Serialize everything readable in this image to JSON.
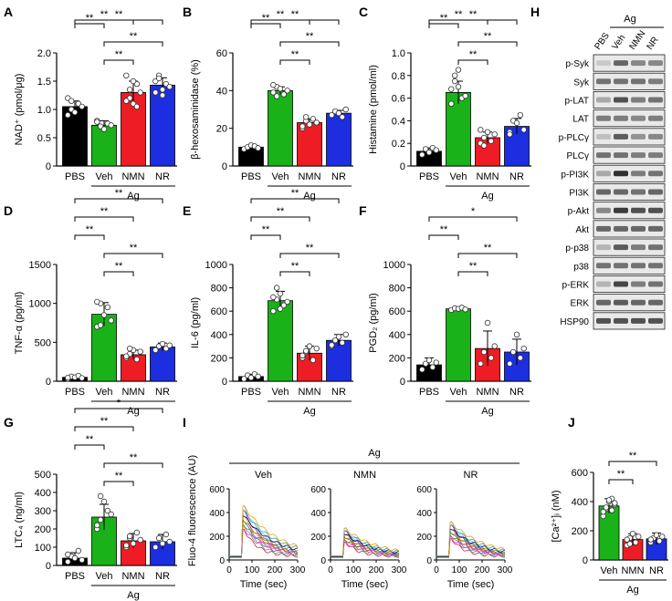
{
  "colors": {
    "PBS": "#000000",
    "Veh": "#19b219",
    "NMN": "#ee1c24",
    "NR": "#1c2ee0",
    "axis": "#000000"
  },
  "chart_data": [
    {
      "panel": "A",
      "type": "bar",
      "ylabel": "NAD⁺ (pmol/μg)",
      "ylim": [
        0,
        2
      ],
      "yticks": [
        0,
        0.5,
        1.0,
        1.5,
        2.0
      ],
      "ytick_labels": [
        "0",
        "0.5",
        "1.0",
        "1.5",
        "2.0"
      ],
      "categories": [
        "PBS",
        "Veh",
        "NMN",
        "NR"
      ],
      "values": [
        1.05,
        0.72,
        1.3,
        1.43
      ],
      "errors": [
        0.1,
        0.08,
        0.2,
        0.13
      ],
      "points": [
        [
          1.2,
          1.0,
          0.95,
          1.1,
          1.05,
          0.9,
          1.15
        ],
        [
          0.8,
          0.7,
          0.65,
          0.75,
          0.72,
          0.78
        ],
        [
          1.6,
          1.2,
          1.1,
          1.45,
          1.3,
          1.15,
          1.35,
          1.5,
          1.05
        ],
        [
          1.5,
          1.6,
          1.35,
          1.45,
          1.4,
          1.3,
          1.55,
          1.25
        ]
      ],
      "group_label": "Ag",
      "significance": [
        [
          "PBS",
          "NR",
          "**"
        ],
        [
          "PBS",
          "NMN",
          "**"
        ],
        [
          "PBS",
          "Veh",
          "**"
        ],
        [
          "Veh",
          "NR",
          "**"
        ],
        [
          "Veh",
          "NMN",
          "**"
        ]
      ]
    },
    {
      "panel": "B",
      "type": "bar",
      "ylabel": "β-hexosaminidase (%)",
      "ylim": [
        0,
        60
      ],
      "yticks": [
        0,
        20,
        40,
        60
      ],
      "ytick_labels": [
        "0",
        "20",
        "40",
        "60"
      ],
      "categories": [
        "PBS",
        "Veh",
        "NMN",
        "NR"
      ],
      "values": [
        10,
        40,
        23,
        28
      ],
      "errors": [
        1,
        2,
        2,
        1.5
      ],
      "points": [
        [
          9,
          10,
          11,
          10.5,
          9.5
        ],
        [
          39,
          42,
          41,
          38,
          40,
          43,
          37
        ],
        [
          20,
          24,
          22,
          25,
          23,
          21,
          26
        ],
        [
          27,
          29,
          28,
          26,
          30
        ]
      ],
      "group_label": "Ag",
      "significance": [
        [
          "PBS",
          "NR",
          "**"
        ],
        [
          "PBS",
          "NMN",
          "**"
        ],
        [
          "PBS",
          "Veh",
          "**"
        ],
        [
          "Veh",
          "NR",
          "**"
        ],
        [
          "Veh",
          "NMN",
          "**"
        ]
      ]
    },
    {
      "panel": "C",
      "type": "bar",
      "ylabel": "Histamine (pmol/ml)",
      "ylim": [
        0,
        1.0
      ],
      "yticks": [
        0,
        0.2,
        0.4,
        0.6,
        0.8,
        1.0
      ],
      "ytick_labels": [
        "0",
        "0.2",
        "0.4",
        "0.6",
        "0.8",
        "1.0"
      ],
      "categories": [
        "PBS",
        "Veh",
        "NMN",
        "NR"
      ],
      "values": [
        0.13,
        0.65,
        0.25,
        0.35
      ],
      "errors": [
        0.03,
        0.1,
        0.05,
        0.07
      ],
      "points": [
        [
          0.1,
          0.15,
          0.12,
          0.16,
          0.14
        ],
        [
          0.55,
          0.8,
          0.7,
          0.6,
          0.62,
          0.68,
          0.75,
          0.85
        ],
        [
          0.2,
          0.25,
          0.3,
          0.22,
          0.28,
          0.32,
          0.18
        ],
        [
          0.3,
          0.4,
          0.38,
          0.45,
          0.32,
          0.28
        ]
      ],
      "group_label": "Ag",
      "significance": [
        [
          "PBS",
          "NR",
          "**"
        ],
        [
          "PBS",
          "NMN",
          "**"
        ],
        [
          "PBS",
          "Veh",
          "**"
        ],
        [
          "Veh",
          "NR",
          "**"
        ],
        [
          "Veh",
          "NMN",
          "**"
        ]
      ]
    },
    {
      "panel": "D",
      "type": "bar",
      "ylabel": "TNF-α (pg/ml)",
      "ylim": [
        0,
        1500
      ],
      "yticks": [
        0,
        500,
        1000,
        1500
      ],
      "ytick_labels": [
        "0",
        "500",
        "1000",
        "1500"
      ],
      "categories": [
        "PBS",
        "Veh",
        "NMN",
        "NR"
      ],
      "values": [
        50,
        860,
        340,
        440
      ],
      "errors": [
        20,
        150,
        60,
        50
      ],
      "points": [
        [
          30,
          60,
          50,
          70,
          40,
          45
        ],
        [
          700,
          1000,
          850,
          950,
          780,
          1020,
          720
        ],
        [
          300,
          350,
          400,
          280,
          380,
          320,
          420
        ],
        [
          400,
          450,
          480,
          420,
          460
        ]
      ],
      "group_label": "Ag",
      "significance": [
        [
          "PBS",
          "NR",
          "**"
        ],
        [
          "PBS",
          "NMN",
          "**"
        ],
        [
          "PBS",
          "Veh",
          "**"
        ],
        [
          "Veh",
          "NR",
          "**"
        ],
        [
          "Veh",
          "NMN",
          "**"
        ]
      ]
    },
    {
      "panel": "E",
      "type": "bar",
      "ylabel": "IL-6 (pg/ml)",
      "ylim": [
        0,
        1000
      ],
      "yticks": [
        0,
        200,
        400,
        600,
        800,
        1000
      ],
      "ytick_labels": [
        "0",
        "200",
        "400",
        "600",
        "800",
        "1000"
      ],
      "categories": [
        "PBS",
        "Veh",
        "NMN",
        "NR"
      ],
      "values": [
        40,
        690,
        240,
        350
      ],
      "errors": [
        20,
        80,
        60,
        50
      ],
      "points": [
        [
          20,
          50,
          30,
          60,
          40
        ],
        [
          600,
          700,
          750,
          650,
          680,
          720,
          800,
          620
        ],
        [
          200,
          250,
          300,
          180,
          280,
          220,
          260
        ],
        [
          300,
          350,
          380,
          330,
          400,
          310
        ]
      ],
      "group_label": "Ag",
      "significance": [
        [
          "PBS",
          "NR",
          "**"
        ],
        [
          "PBS",
          "NMN",
          "**"
        ],
        [
          "PBS",
          "Veh",
          "**"
        ],
        [
          "Veh",
          "NR",
          "**"
        ],
        [
          "Veh",
          "NMN",
          "**"
        ]
      ]
    },
    {
      "panel": "F",
      "type": "bar",
      "ylabel": "PGD₂ (pg/ml)",
      "ylim": [
        0,
        1000
      ],
      "yticks": [
        0,
        200,
        400,
        600,
        800,
        1000
      ],
      "ytick_labels": [
        "0",
        "200",
        "400",
        "600",
        "800",
        "1000"
      ],
      "categories": [
        "PBS",
        "Veh",
        "NMN",
        "NR"
      ],
      "values": [
        140,
        620,
        280,
        250
      ],
      "errors": [
        60,
        10,
        150,
        110
      ],
      "points": [
        [
          100,
          150,
          180,
          120,
          160
        ],
        [
          610,
          625,
          620,
          630,
          615
        ],
        [
          150,
          250,
          500,
          200,
          300
        ],
        [
          150,
          250,
          400,
          200,
          280
        ]
      ],
      "group_label": "Ag",
      "significance": [
        [
          "PBS",
          "NR",
          "*"
        ],
        [
          "PBS",
          "Veh",
          "**"
        ],
        [
          "Veh",
          "NR",
          "**"
        ],
        [
          "Veh",
          "NMN",
          "**"
        ]
      ]
    },
    {
      "panel": "G",
      "type": "bar",
      "ylabel": "LTC₄ (ng/ml)",
      "ylim": [
        0,
        500
      ],
      "yticks": [
        0,
        100,
        200,
        300,
        400,
        500
      ],
      "ytick_labels": [
        "0",
        "100",
        "200",
        "300",
        "400",
        "500"
      ],
      "categories": [
        "PBS",
        "Veh",
        "NMN",
        "NR"
      ],
      "values": [
        40,
        265,
        135,
        130
      ],
      "errors": [
        30,
        70,
        40,
        40
      ],
      "points": [
        [
          20,
          50,
          40,
          80,
          30,
          60
        ],
        [
          200,
          250,
          350,
          300,
          280,
          220,
          380
        ],
        [
          100,
          150,
          120,
          180,
          140,
          110,
          160
        ],
        [
          100,
          150,
          120,
          170,
          130
        ]
      ],
      "group_label": "Ag",
      "significance": [
        [
          "PBS",
          "NR",
          "*"
        ],
        [
          "PBS",
          "NMN",
          "**"
        ],
        [
          "PBS",
          "Veh",
          "**"
        ],
        [
          "Veh",
          "NR",
          "**"
        ],
        [
          "Veh",
          "NMN",
          "**"
        ]
      ]
    },
    {
      "panel": "I",
      "type": "line",
      "group_label": "Ag",
      "ylabel": "Fluo-4 fluorescence (AU)",
      "xlabel": "Time (sec)",
      "ylim": [
        0,
        600
      ],
      "yticks": [
        0,
        200,
        400,
        600
      ],
      "ytick_labels": [
        "0",
        "200",
        "400",
        "600"
      ],
      "xlim": [
        0,
        300
      ],
      "xticks": [
        0,
        100,
        200,
        300
      ],
      "xtick_labels": [
        "0",
        "100",
        "200",
        "300"
      ],
      "subplots": [
        {
          "title": "Veh",
          "peak": 430
        },
        {
          "title": "NMN",
          "peak": 250
        },
        {
          "title": "NR",
          "peak": 300
        }
      ]
    },
    {
      "panel": "J",
      "type": "bar",
      "ylabel": "[Ca²⁺]ᵢ (nM)",
      "ylim": [
        0,
        600
      ],
      "yticks": [
        0,
        200,
        400,
        600
      ],
      "ytick_labels": [
        "0",
        "200",
        "400",
        "600"
      ],
      "categories": [
        "Veh",
        "NMN",
        "NR"
      ],
      "values": [
        370,
        140,
        145
      ],
      "errors": [
        50,
        40,
        40
      ],
      "points": [
        [
          300,
          350,
          400,
          420,
          380,
          330,
          360,
          410,
          340,
          390
        ],
        [
          100,
          150,
          180,
          120,
          160,
          140,
          110
        ],
        [
          120,
          150,
          170,
          130,
          160,
          140
        ]
      ],
      "group_label": "Ag",
      "significance": [
        [
          "Veh",
          "NR",
          "**"
        ],
        [
          "Veh",
          "NMN",
          "**"
        ]
      ]
    }
  ],
  "panel_labels": [
    "A",
    "B",
    "C",
    "D",
    "E",
    "F",
    "G",
    "H",
    "I",
    "J"
  ],
  "western_blot": {
    "group_label": "Ag",
    "lanes": [
      "PBS",
      "Veh",
      "NMN",
      "NR"
    ],
    "rows": [
      "p-Syk",
      "Syk",
      "p-LAT",
      "LAT",
      "p-PLCγ",
      "PLCγ",
      "p-PI3K",
      "PI3K",
      "p-Akt",
      "Akt",
      "p-p38",
      "p38",
      "p-ERK",
      "ERK",
      "HSP90"
    ],
    "intensity": [
      [
        0.15,
        0.6,
        0.45,
        0.45
      ],
      [
        0.55,
        0.55,
        0.55,
        0.5
      ],
      [
        0.3,
        0.7,
        0.5,
        0.55
      ],
      [
        0.5,
        0.5,
        0.45,
        0.5
      ],
      [
        0.2,
        0.65,
        0.4,
        0.45
      ],
      [
        0.55,
        0.55,
        0.5,
        0.5
      ],
      [
        0.3,
        0.85,
        0.5,
        0.55
      ],
      [
        0.6,
        0.6,
        0.55,
        0.6
      ],
      [
        0.45,
        0.8,
        0.7,
        0.7
      ],
      [
        0.6,
        0.6,
        0.6,
        0.6
      ],
      [
        0.25,
        0.65,
        0.5,
        0.55
      ],
      [
        0.55,
        0.55,
        0.55,
        0.55
      ],
      [
        0.25,
        0.75,
        0.5,
        0.55
      ],
      [
        0.6,
        0.65,
        0.6,
        0.6
      ],
      [
        0.7,
        0.7,
        0.7,
        0.7
      ]
    ]
  }
}
